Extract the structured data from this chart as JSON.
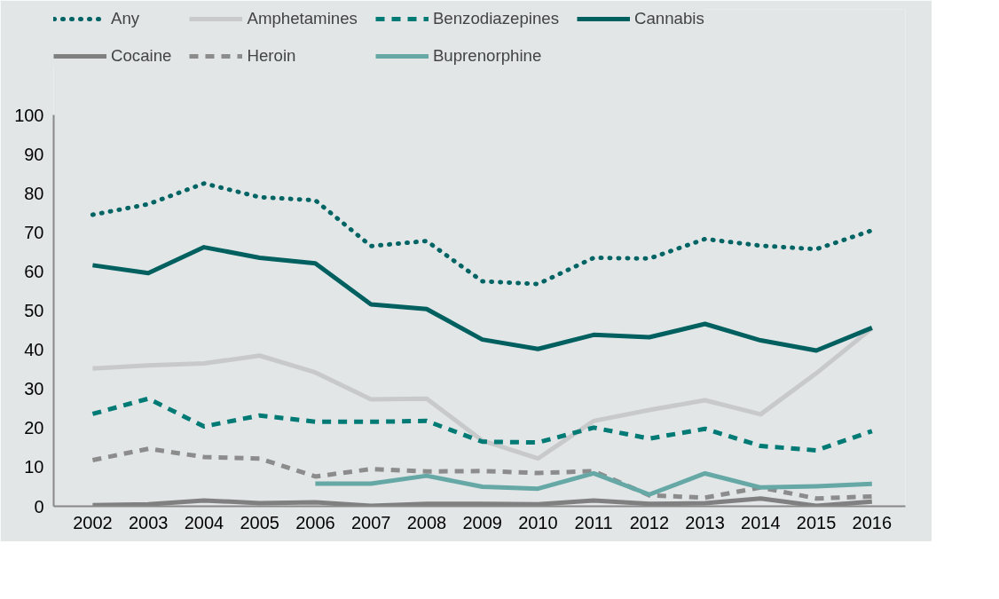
{
  "chart_data": {
    "type": "line",
    "x": [
      2002,
      2003,
      2004,
      2005,
      2006,
      2007,
      2008,
      2009,
      2010,
      2011,
      2012,
      2013,
      2014,
      2015,
      2016
    ],
    "xlim": [
      2001.3,
      2016.6
    ],
    "xticks": [
      2002,
      2003,
      2004,
      2005,
      2006,
      2007,
      2008,
      2009,
      2010,
      2011,
      2012,
      2013,
      2014,
      2015,
      2016
    ],
    "ylim": [
      0,
      100
    ],
    "yticks": [
      0,
      10,
      20,
      30,
      40,
      50,
      60,
      70,
      80,
      90,
      100
    ],
    "grid": false,
    "legend": "top",
    "marker": "none",
    "series": [
      {
        "name": "Any",
        "color": "#006464",
        "line_style": "dotted",
        "values": [
          74.5,
          77.2,
          82.5,
          79,
          78.2,
          66.5,
          67.8,
          57.5,
          56.8,
          63.5,
          63.3,
          68.3,
          66.6,
          65.7,
          70.5
        ]
      },
      {
        "name": "Amphetamines",
        "color": "#c8c9ca",
        "line_style": "solid",
        "values": [
          35.2,
          36,
          36.5,
          38.5,
          34.2,
          27.3,
          27.5,
          16.8,
          12.2,
          21.8,
          24.6,
          27.1,
          23.5,
          34,
          45.5
        ]
      },
      {
        "name": "Benzodiazepines",
        "color": "#007a75",
        "line_style": "dashed",
        "values": [
          23.6,
          27.5,
          20.4,
          23.2,
          21.6,
          21.6,
          21.8,
          16.5,
          16.3,
          20.1,
          17.3,
          19.8,
          15.4,
          14.3,
          19.2
        ]
      },
      {
        "name": "Cannabis",
        "color": "#005f5f",
        "line_style": "solid",
        "values": [
          61.6,
          59.6,
          66.2,
          63.5,
          62.1,
          51.6,
          50.4,
          42.6,
          40.2,
          43.8,
          43.2,
          46.6,
          42.4,
          39.8,
          45.6
        ]
      },
      {
        "name": "Cocaine",
        "color": "#808080",
        "line_style": "solid",
        "values": [
          0.3,
          0.5,
          1.5,
          0.8,
          1.0,
          0.1,
          0.6,
          0.6,
          0.5,
          1.5,
          0.6,
          0.8,
          2.0,
          0.1,
          1.2
        ]
      },
      {
        "name": "Heroin",
        "color": "#8c8c8c",
        "line_style": "dashed",
        "values": [
          11.8,
          14.7,
          12.6,
          12.2,
          7.6,
          9.5,
          8.9,
          9.0,
          8.5,
          9.0,
          2.8,
          2.2,
          4.8,
          2.0,
          2.5
        ]
      },
      {
        "name": "Buprenorphine",
        "color": "#66a8a6",
        "line_style": "solid",
        "values": [
          null,
          null,
          null,
          null,
          5.8,
          5.8,
          7.8,
          5.0,
          4.5,
          8.4,
          3.0,
          8.4,
          4.8,
          5.1,
          5.7
        ]
      }
    ]
  }
}
